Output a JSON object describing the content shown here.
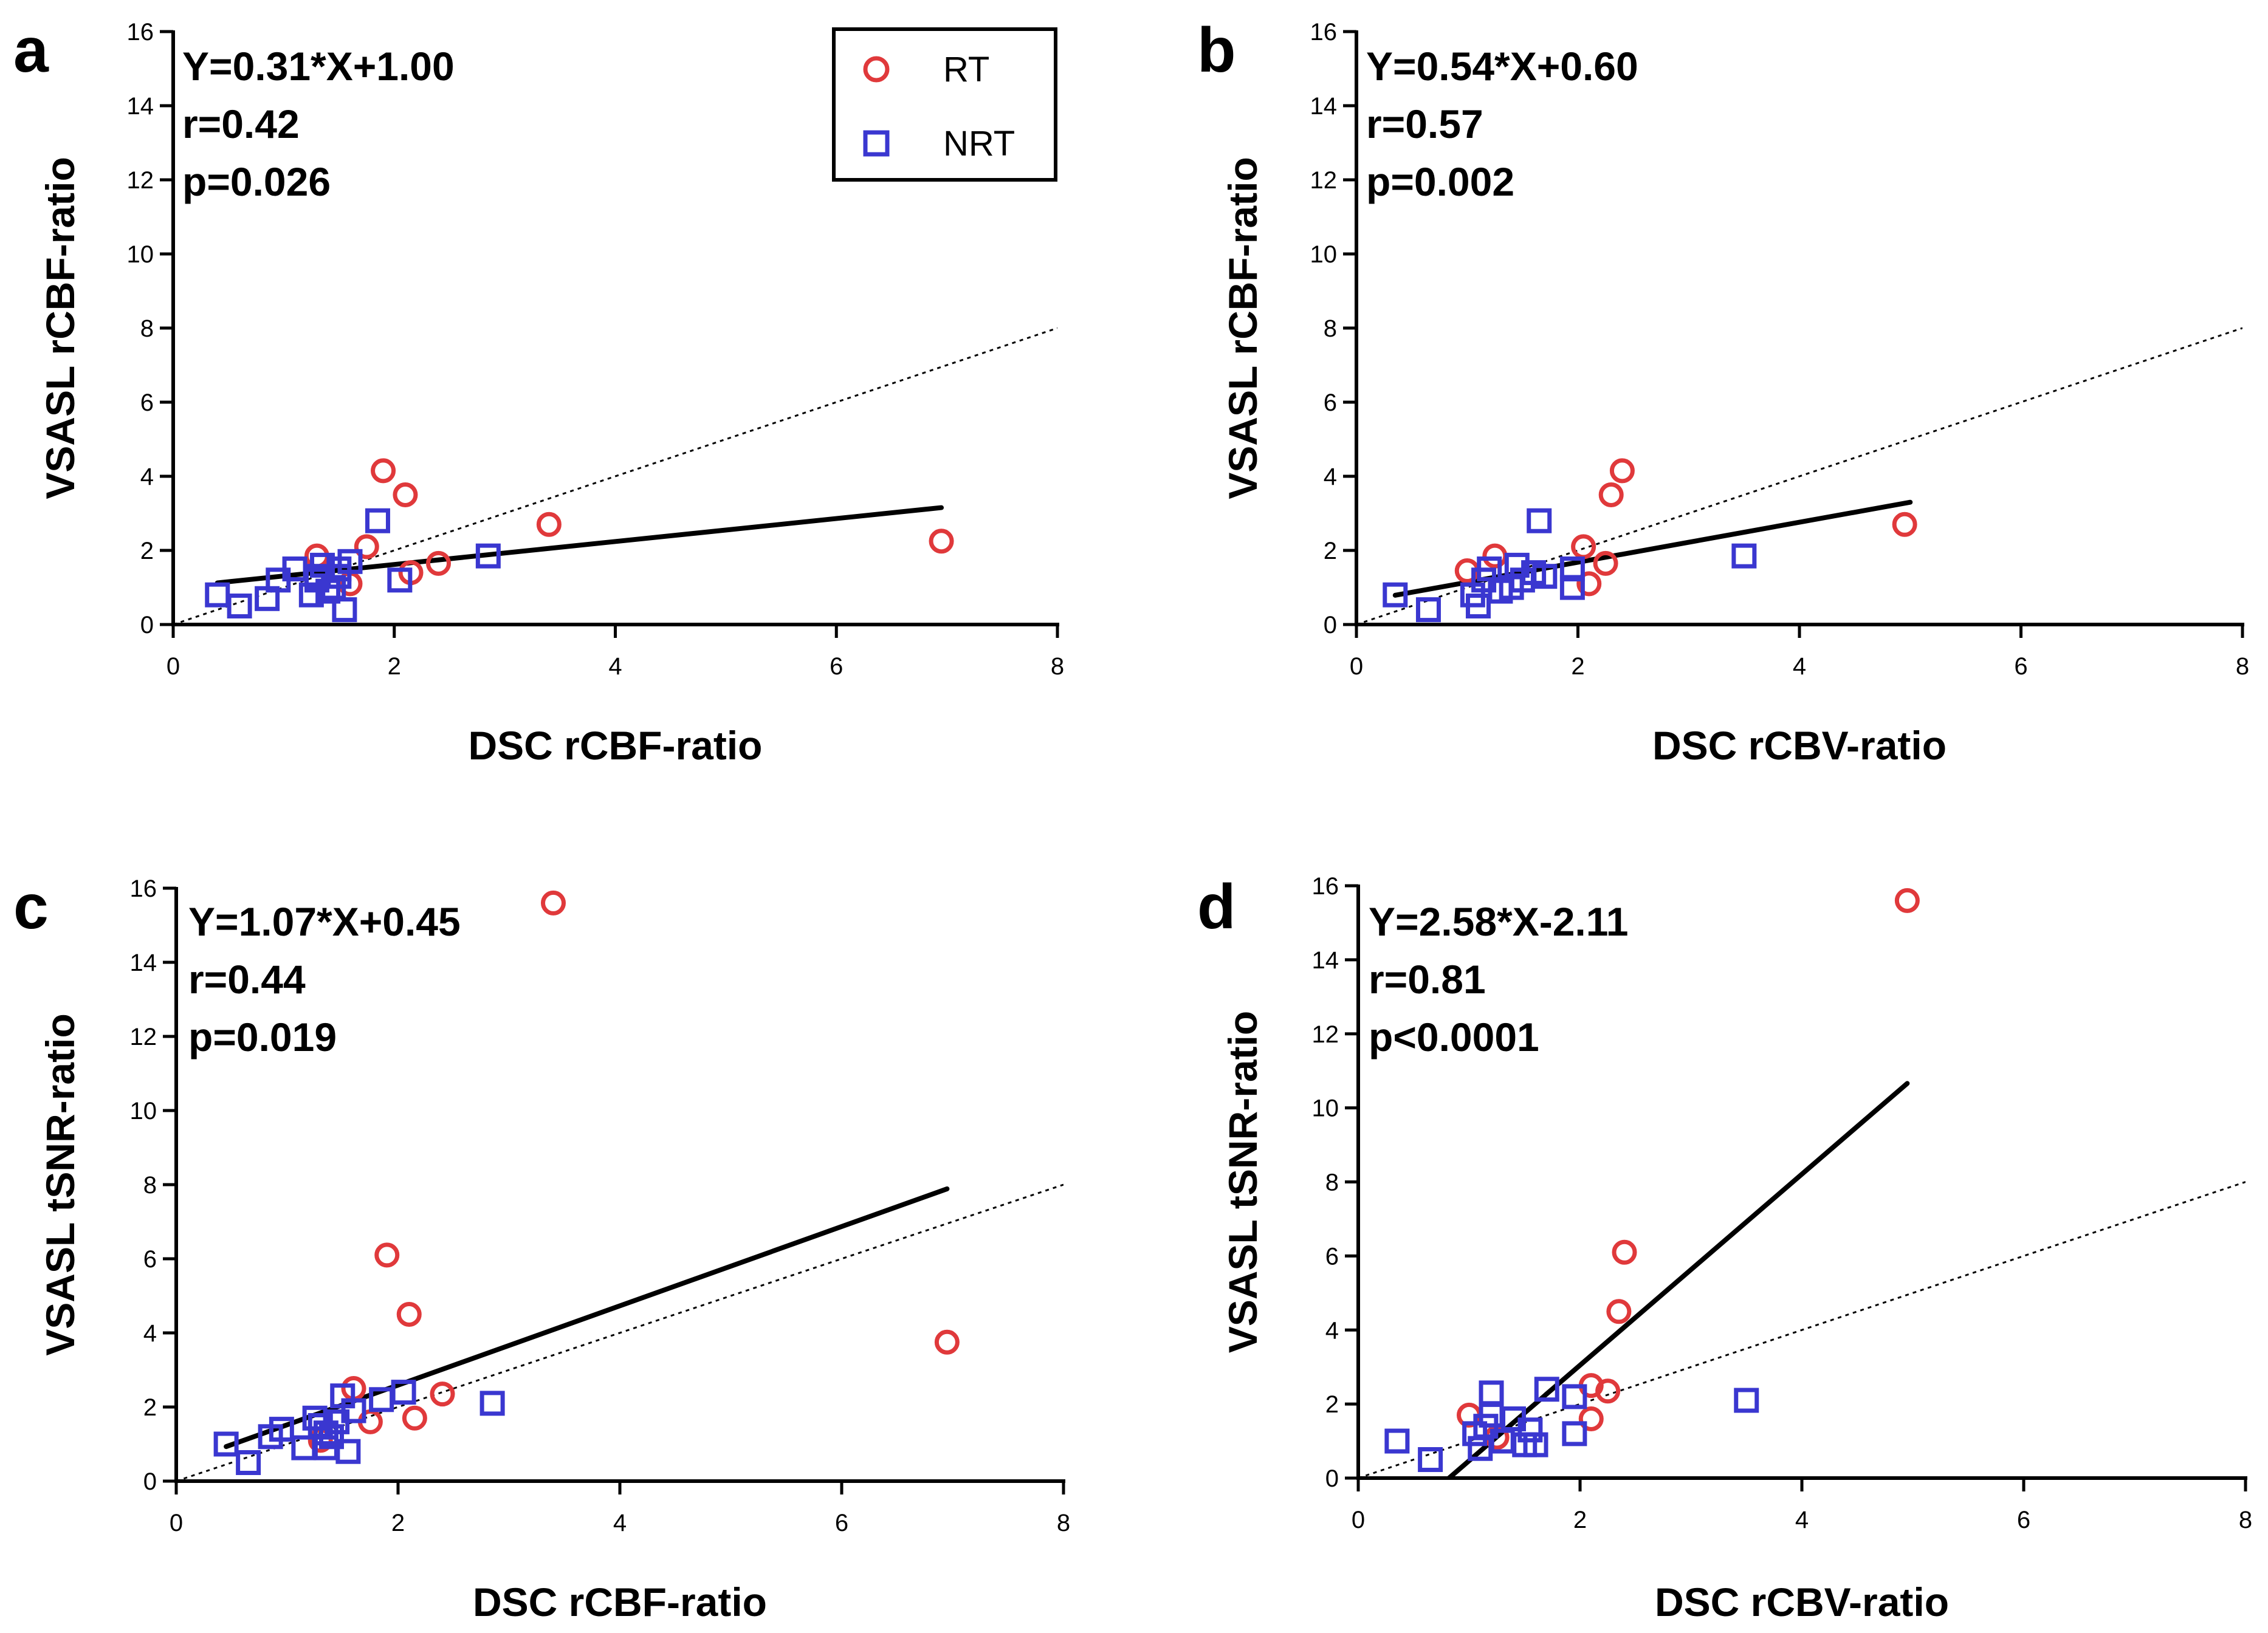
{
  "legend": {
    "rt_label": "RT",
    "nrt_label": "NRT",
    "rt_color": "#e0393b",
    "nrt_color": "#3a37d0"
  },
  "chart_data": [
    {
      "type": "scatter",
      "panel": "a",
      "xlabel": "DSC rCBF-ratio",
      "ylabel": "VSASL rCBF-ratio",
      "xlim": [
        0,
        8
      ],
      "ylim": [
        0,
        16
      ],
      "xticks": [
        0,
        2,
        4,
        6,
        8
      ],
      "yticks": [
        0,
        2,
        4,
        6,
        8,
        10,
        12,
        14,
        16
      ],
      "stats": [
        "Y=0.31*X+1.00",
        "r=0.42",
        "p=0.026"
      ],
      "fit": {
        "slope": 0.31,
        "intercept": 1.0,
        "x_range": [
          0.4,
          6.95
        ]
      },
      "identity_line": true,
      "legend": true,
      "series": [
        {
          "name": "RT",
          "marker": "circle",
          "x": [
            1.3,
            1.9,
            2.1,
            1.75,
            2.15,
            2.4,
            3.4,
            1.6,
            6.95
          ],
          "y": [
            1.85,
            4.15,
            3.5,
            2.1,
            1.4,
            1.65,
            2.7,
            1.1,
            2.25
          ]
        },
        {
          "name": "NRT",
          "marker": "square",
          "x": [
            0.4,
            0.6,
            0.85,
            0.95,
            1.1,
            1.25,
            1.3,
            1.35,
            1.4,
            1.45,
            1.5,
            1.55,
            1.6,
            1.85,
            2.05,
            2.85,
            1.3,
            1.5
          ],
          "y": [
            0.8,
            0.5,
            0.7,
            1.2,
            1.5,
            0.8,
            1.2,
            1.6,
            0.9,
            1.0,
            1.3,
            0.4,
            1.7,
            2.8,
            1.2,
            1.85,
            1.3,
            1.5
          ]
        }
      ]
    },
    {
      "type": "scatter",
      "panel": "b",
      "xlabel": "DSC rCBV-ratio",
      "ylabel": "VSASL rCBF-ratio",
      "xlim": [
        0,
        8
      ],
      "ylim": [
        0,
        16
      ],
      "xticks": [
        0,
        2,
        4,
        6,
        8
      ],
      "yticks": [
        0,
        2,
        4,
        6,
        8,
        10,
        12,
        14,
        16
      ],
      "stats": [
        "Y=0.54*X+0.60",
        "r=0.57",
        "p=0.002"
      ],
      "fit": {
        "slope": 0.54,
        "intercept": 0.6,
        "x_range": [
          0.35,
          5.0
        ]
      },
      "identity_line": true,
      "legend": false,
      "series": [
        {
          "name": "RT",
          "marker": "circle",
          "x": [
            1.0,
            1.25,
            2.05,
            2.1,
            2.25,
            2.3,
            2.4,
            4.95
          ],
          "y": [
            1.45,
            1.85,
            2.1,
            1.1,
            1.65,
            3.5,
            4.15,
            2.7
          ]
        },
        {
          "name": "NRT",
          "marker": "square",
          "x": [
            0.35,
            0.65,
            1.05,
            1.1,
            1.15,
            1.2,
            1.3,
            1.4,
            1.45,
            1.5,
            1.6,
            1.65,
            1.7,
            1.95,
            1.95,
            3.5
          ],
          "y": [
            0.8,
            0.4,
            0.8,
            0.5,
            1.2,
            1.5,
            0.9,
            1.0,
            1.6,
            1.2,
            1.4,
            2.8,
            1.3,
            1.0,
            1.5,
            1.85
          ]
        }
      ]
    },
    {
      "type": "scatter",
      "panel": "c",
      "xlabel": "DSC rCBF-ratio",
      "ylabel": "VSASL tSNR-ratio",
      "xlim": [
        0,
        8
      ],
      "ylim": [
        0,
        16
      ],
      "xticks": [
        0,
        2,
        4,
        6,
        8
      ],
      "yticks": [
        0,
        2,
        4,
        6,
        8,
        10,
        12,
        14,
        16
      ],
      "stats": [
        "Y=1.07*X+0.45",
        "r=0.44",
        "p=0.019"
      ],
      "fit": {
        "slope": 1.07,
        "intercept": 0.45,
        "x_range": [
          0.45,
          6.95
        ]
      },
      "identity_line": true,
      "legend": false,
      "series": [
        {
          "name": "RT",
          "marker": "circle",
          "x": [
            3.4,
            1.9,
            2.1,
            6.95,
            1.6,
            1.75,
            2.15,
            2.4,
            1.3
          ],
          "y": [
            15.6,
            6.1,
            4.5,
            3.75,
            2.5,
            1.6,
            1.7,
            2.35,
            1.1
          ]
        },
        {
          "name": "NRT",
          "marker": "square",
          "x": [
            0.45,
            0.65,
            0.85,
            0.95,
            1.15,
            1.25,
            1.3,
            1.35,
            1.4,
            1.5,
            1.55,
            1.6,
            1.85,
            2.05,
            2.85,
            1.45,
            1.35
          ],
          "y": [
            1.0,
            0.5,
            1.2,
            1.4,
            0.9,
            1.7,
            1.5,
            0.9,
            1.2,
            2.3,
            0.8,
            1.9,
            2.2,
            2.4,
            2.1,
            1.6,
            1.3
          ]
        }
      ]
    },
    {
      "type": "scatter",
      "panel": "d",
      "xlabel": "DSC rCBV-ratio",
      "ylabel": "VSASL tSNR-ratio",
      "xlim": [
        0,
        8
      ],
      "ylim": [
        0,
        16
      ],
      "xticks": [
        0,
        2,
        4,
        6,
        8
      ],
      "yticks": [
        0,
        2,
        4,
        6,
        8,
        10,
        12,
        14,
        16
      ],
      "stats": [
        "Y=2.58*X-2.11",
        "r=0.81",
        "p<0.0001"
      ],
      "fit": {
        "slope": 2.58,
        "intercept": -2.11,
        "x_range": [
          0.818,
          4.95
        ]
      },
      "identity_line": true,
      "legend": false,
      "series": [
        {
          "name": "RT",
          "marker": "circle",
          "x": [
            4.95,
            2.4,
            2.35,
            2.1,
            2.25,
            2.1,
            1.0,
            1.25
          ],
          "y": [
            15.6,
            6.1,
            4.5,
            2.5,
            2.35,
            1.6,
            1.7,
            1.1
          ]
        },
        {
          "name": "NRT",
          "marker": "square",
          "x": [
            0.35,
            0.65,
            1.05,
            1.1,
            1.15,
            1.2,
            1.3,
            1.4,
            1.5,
            1.55,
            1.6,
            1.7,
            1.95,
            1.95,
            3.5,
            1.2
          ],
          "y": [
            1.0,
            0.5,
            1.2,
            0.8,
            1.4,
            2.3,
            1.0,
            1.6,
            0.9,
            1.3,
            0.9,
            2.4,
            2.2,
            1.2,
            2.1,
            1.7
          ]
        }
      ]
    }
  ]
}
